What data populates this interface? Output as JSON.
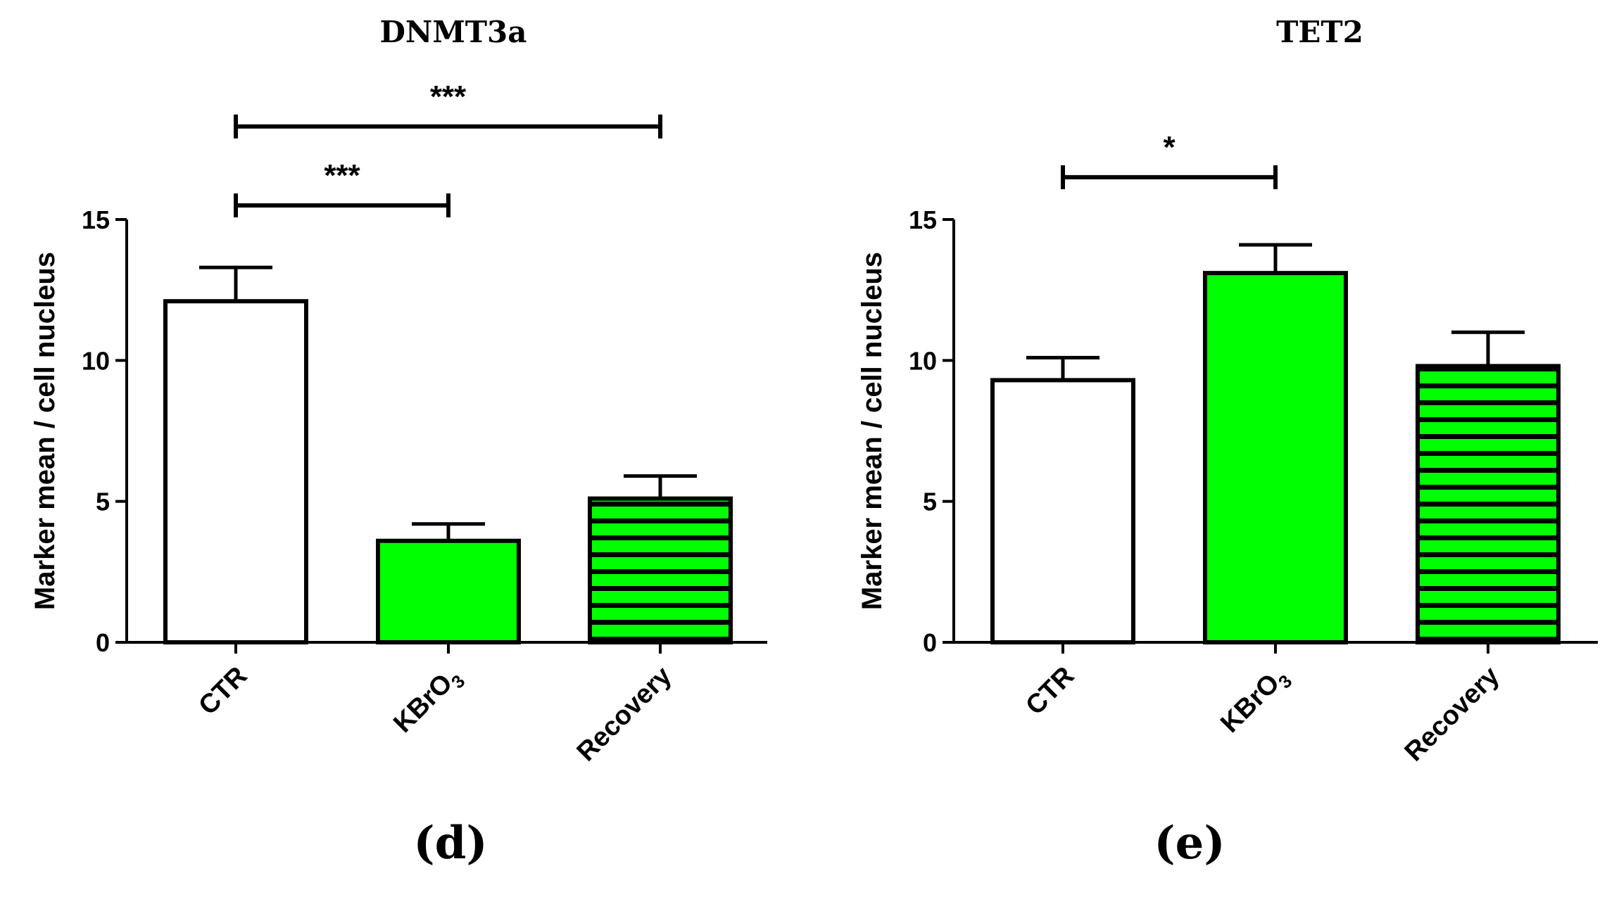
{
  "colors": {
    "green": "#00ff00",
    "white": "#ffffff",
    "black": "#000000"
  },
  "chart_data": [
    {
      "type": "bar",
      "title": "DNMT3a",
      "panel_label": "(d)",
      "ylabel": "Marker mean / cell nucleus",
      "xlabel": "",
      "ylim": [
        0,
        15
      ],
      "yticks": [
        0,
        5,
        10,
        15
      ],
      "categories": [
        {
          "text": "CTR",
          "sub": ""
        },
        {
          "text": "KBrO",
          "sub": "3"
        },
        {
          "text": "Recovery",
          "sub": ""
        }
      ],
      "values": [
        12.1,
        3.6,
        5.1
      ],
      "errors": [
        1.2,
        0.6,
        0.8
      ],
      "fills": [
        "white",
        "green",
        "green-striped"
      ],
      "significance": [
        {
          "from": 0,
          "to": 1,
          "label": "***",
          "level": 15.5
        },
        {
          "from": 0,
          "to": 2,
          "label": "***",
          "level": 18.3
        }
      ]
    },
    {
      "type": "bar",
      "title": "TET2",
      "panel_label": "(e)",
      "ylabel": "Marker mean / cell nucleus",
      "xlabel": "",
      "ylim": [
        0,
        15
      ],
      "yticks": [
        0,
        5,
        10,
        15
      ],
      "categories": [
        {
          "text": "CTR",
          "sub": ""
        },
        {
          "text": "KBrO",
          "sub": "3"
        },
        {
          "text": "Recovery",
          "sub": ""
        }
      ],
      "values": [
        9.3,
        13.1,
        9.8
      ],
      "errors": [
        0.8,
        1.0,
        1.2
      ],
      "fills": [
        "white",
        "green",
        "green-striped"
      ],
      "significance": [
        {
          "from": 0,
          "to": 1,
          "label": "*",
          "level": 16.5
        }
      ]
    }
  ]
}
